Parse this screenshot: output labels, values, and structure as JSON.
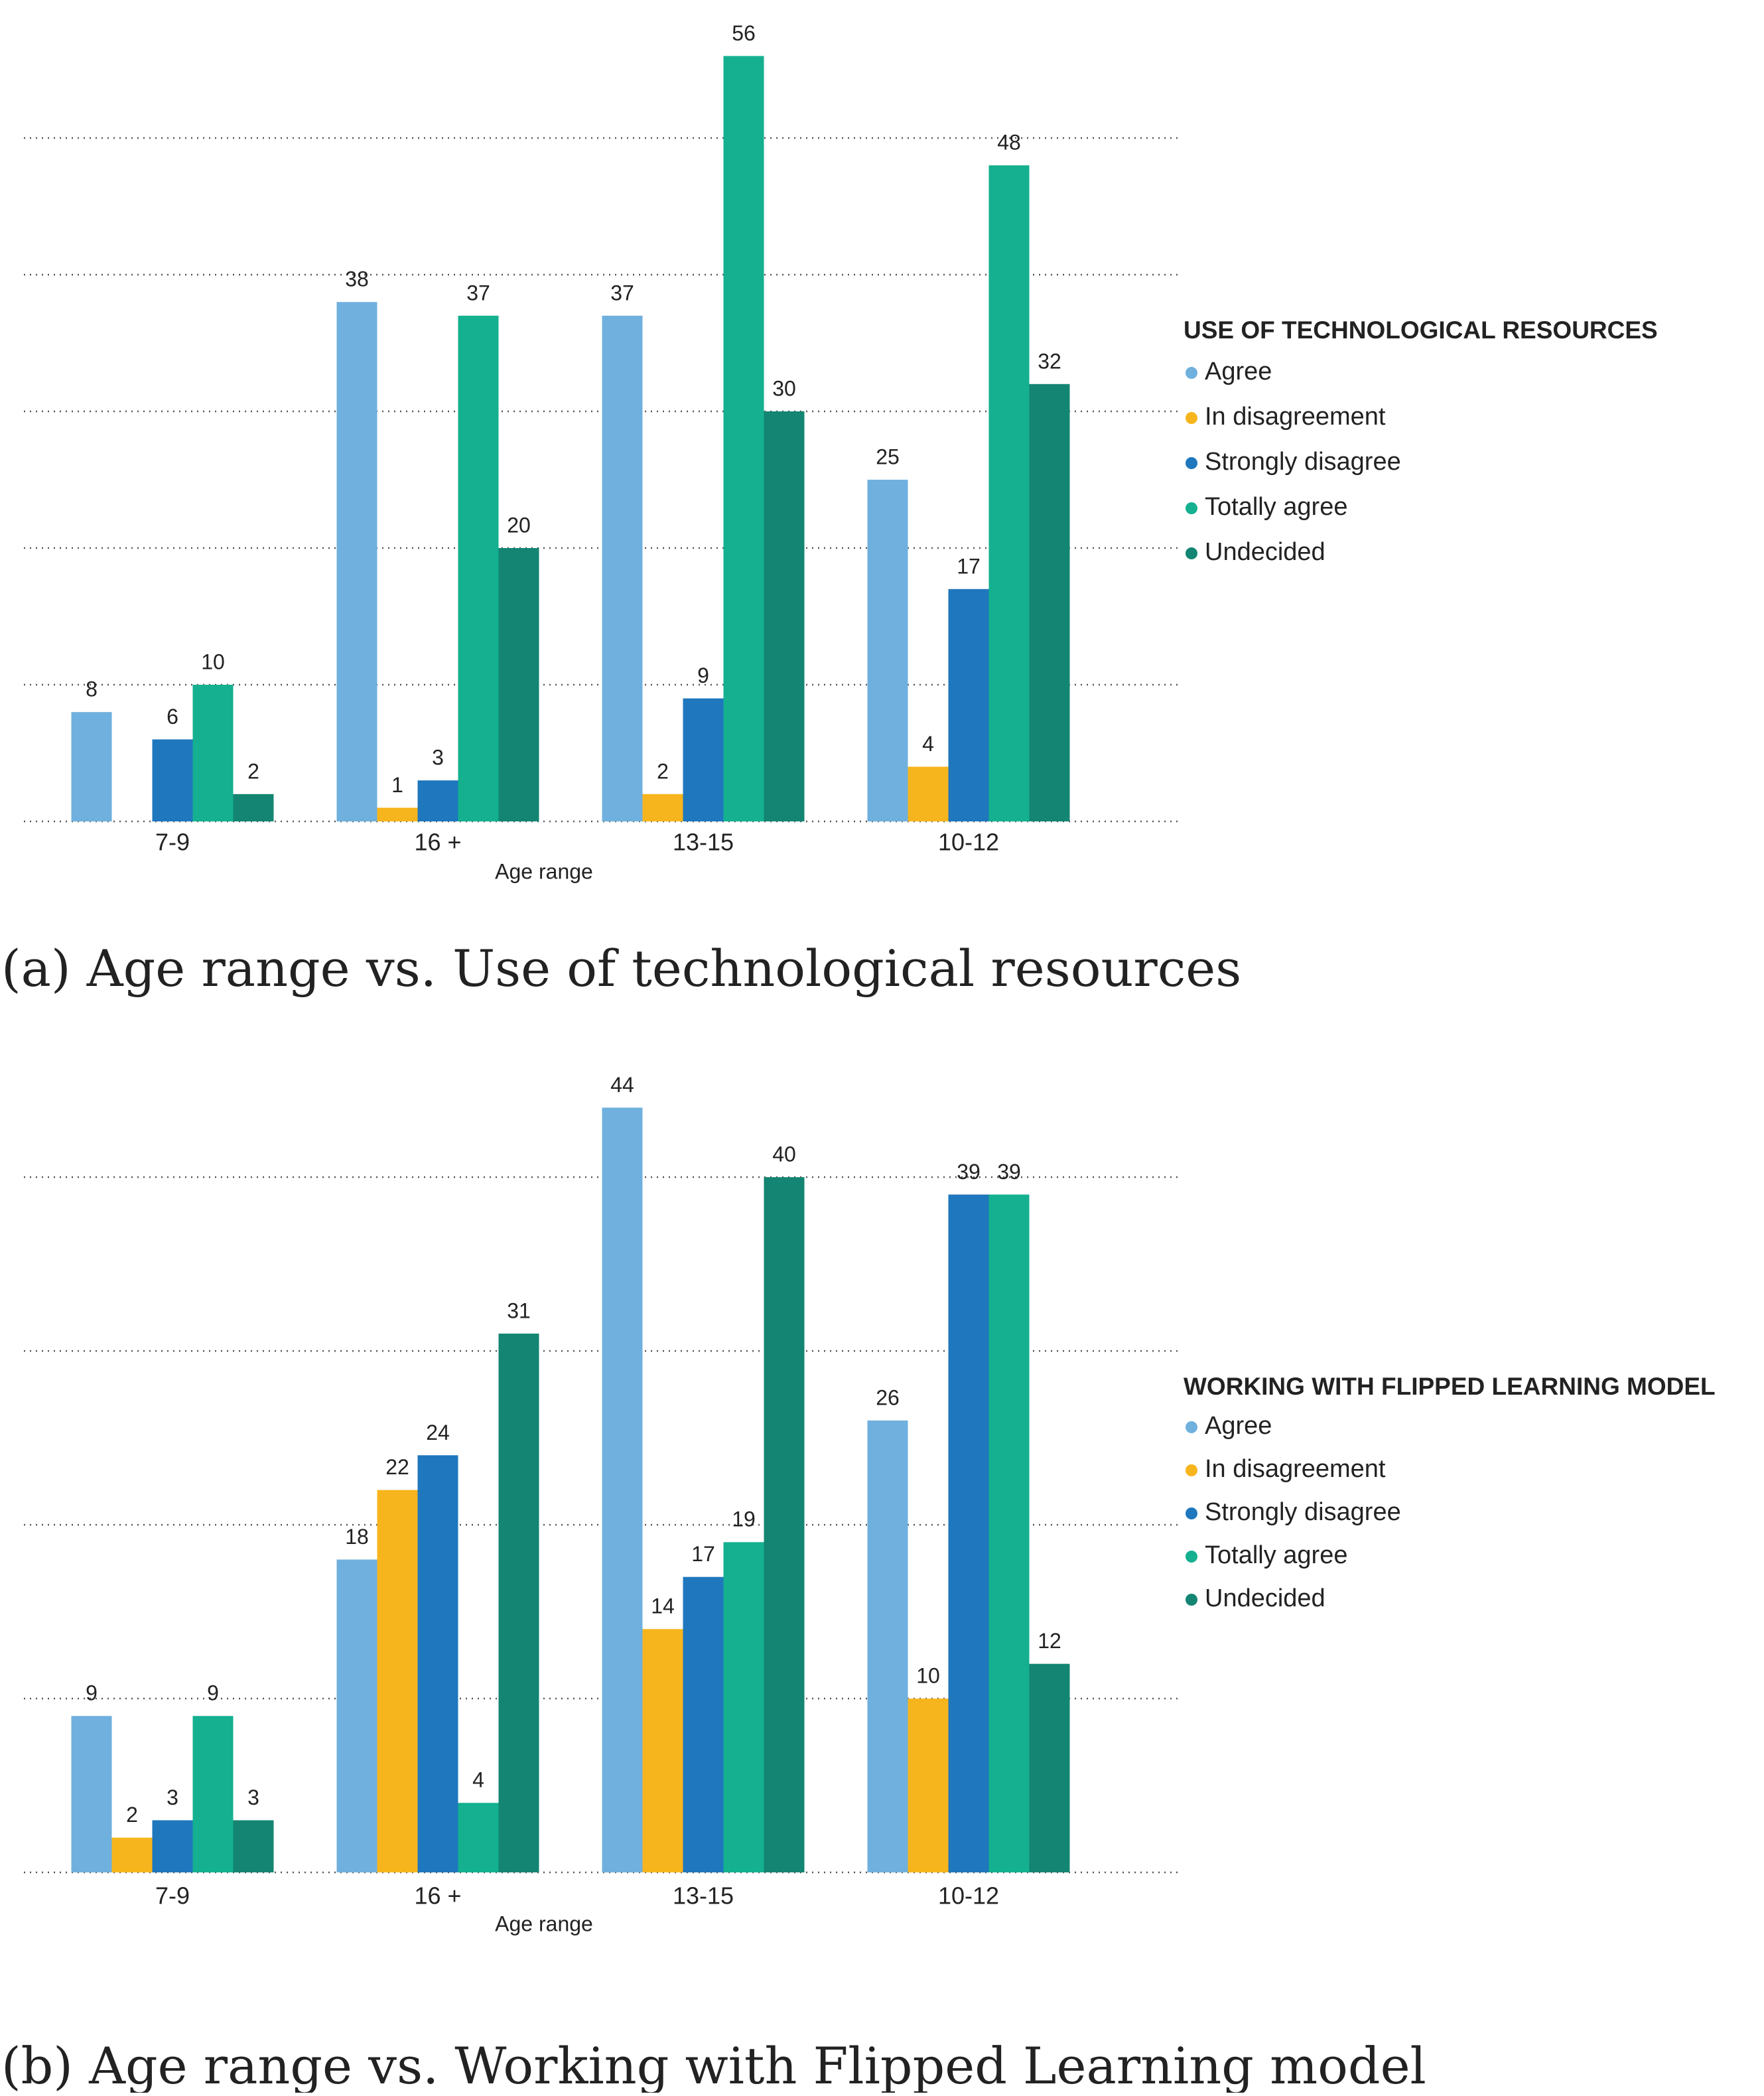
{
  "chart_data": [
    {
      "type": "bar",
      "caption": "(a) Age range vs. Use of technological resources",
      "x_label": "Age range",
      "legend_title": "USE OF TECHNOLOGICAL RESOURCES",
      "legend": "right",
      "grid": true,
      "categories": [
        "7-9",
        "16 +",
        "13-15",
        "10-12"
      ],
      "ylim": [
        0,
        60
      ],
      "yticks": [
        0,
        10,
        20,
        30,
        40,
        50
      ],
      "series": [
        {
          "name": "Agree",
          "color": "#6fb0de",
          "values": [
            8,
            38,
            37,
            25
          ]
        },
        {
          "name": "In disagreement",
          "color": "#f7b51d",
          "values": [
            null,
            1,
            2,
            4
          ]
        },
        {
          "name": "Strongly disagree",
          "color": "#1f77bd",
          "values": [
            6,
            3,
            9,
            17
          ]
        },
        {
          "name": "Totally agree",
          "color": "#14b090",
          "values": [
            10,
            37,
            56,
            48
          ]
        },
        {
          "name": "Undecided",
          "color": "#138572",
          "values": [
            2,
            20,
            30,
            32
          ]
        }
      ]
    },
    {
      "type": "bar",
      "caption": "(b) Age range vs. Working with Flipped Learning model",
      "x_label": "Age range",
      "legend_title": "WORKING WITH FLIPPED LEARNING MODEL",
      "legend": "right",
      "grid": true,
      "categories": [
        "7-9",
        "16 +",
        "13-15",
        "10-12"
      ],
      "ylim": [
        0,
        46
      ],
      "yticks": [
        0,
        10,
        20,
        30,
        40
      ],
      "series": [
        {
          "name": "Agree",
          "color": "#6fb0de",
          "values": [
            9,
            18,
            44,
            26
          ]
        },
        {
          "name": "In disagreement",
          "color": "#f7b51d",
          "values": [
            2,
            22,
            14,
            10
          ]
        },
        {
          "name": "Strongly disagree",
          "color": "#1f77bd",
          "values": [
            3,
            24,
            17,
            39
          ]
        },
        {
          "name": "Totally agree",
          "color": "#14b090",
          "values": [
            9,
            4,
            19,
            39
          ]
        },
        {
          "name": "Undecided",
          "color": "#138572",
          "values": [
            3,
            31,
            40,
            12
          ]
        }
      ]
    }
  ]
}
